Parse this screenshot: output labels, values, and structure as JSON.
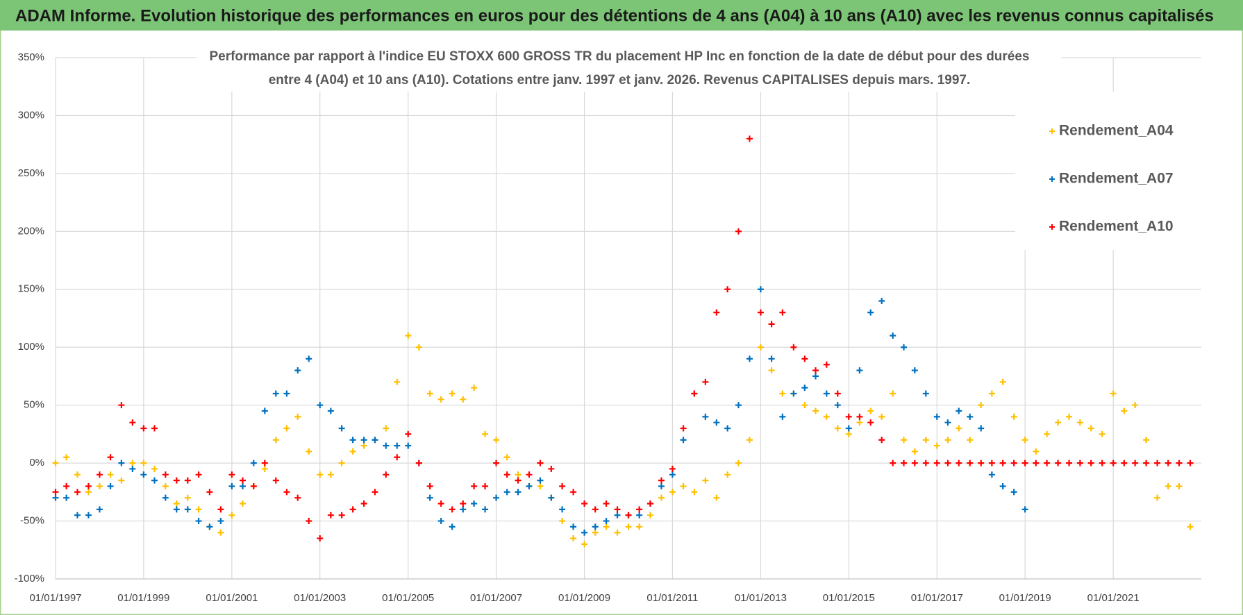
{
  "chart_data": {
    "type": "scatter",
    "title": "ADAM Informe. Evolution historique des performances en euros pour des détentions de 4 ans (A04) à 10 ans (A10) avec les revenus connus capitalisés",
    "subtitle": [
      "Performance par rapport à l'indice EU STOXX 600 GROSS TR  du placement HP Inc en fonction de la date de début pour des durées",
      "entre 4 (A04) et 10 ans (A10). Cotations entre janv. 1997 et janv. 2026. Revenus CAPITALISES depuis mars. 1997."
    ],
    "x": [
      "01/01/1997",
      "01/04/1997",
      "01/07/1997",
      "01/10/1997",
      "01/01/1998",
      "01/04/1998",
      "01/07/1998",
      "01/10/1998",
      "01/01/1999",
      "01/04/1999",
      "01/07/1999",
      "01/10/1999",
      "01/01/2000",
      "01/04/2000",
      "01/07/2000",
      "01/10/2000",
      "01/01/2001",
      "01/04/2001",
      "01/07/2001",
      "01/10/2001",
      "01/01/2002",
      "01/04/2002",
      "01/07/2002",
      "01/10/2002",
      "01/01/2003",
      "01/04/2003",
      "01/07/2003",
      "01/10/2003",
      "01/01/2004",
      "01/04/2004",
      "01/07/2004",
      "01/10/2004",
      "01/01/2005",
      "01/04/2005",
      "01/07/2005",
      "01/10/2005",
      "01/01/2006",
      "01/04/2006",
      "01/07/2006",
      "01/10/2006",
      "01/01/2007",
      "01/04/2007",
      "01/07/2007",
      "01/10/2007",
      "01/01/2008",
      "01/04/2008",
      "01/07/2008",
      "01/10/2008",
      "01/01/2009",
      "01/04/2009",
      "01/07/2009",
      "01/10/2009",
      "01/01/2010",
      "01/04/2010",
      "01/07/2010",
      "01/10/2010",
      "01/01/2011",
      "01/04/2011",
      "01/07/2011",
      "01/10/2011",
      "01/01/2012",
      "01/04/2012",
      "01/07/2012",
      "01/10/2012",
      "01/01/2013",
      "01/04/2013",
      "01/07/2013",
      "01/10/2013",
      "01/01/2014",
      "01/04/2014",
      "01/07/2014",
      "01/10/2014",
      "01/01/2015",
      "01/04/2015",
      "01/07/2015",
      "01/10/2015",
      "01/01/2016",
      "01/04/2016",
      "01/07/2016",
      "01/10/2016",
      "01/01/2017",
      "01/04/2017",
      "01/07/2017",
      "01/10/2017",
      "01/01/2018",
      "01/04/2018",
      "01/07/2018",
      "01/10/2018",
      "01/01/2019",
      "01/04/2019",
      "01/07/2019",
      "01/10/2019",
      "01/01/2020",
      "01/04/2020",
      "01/07/2020",
      "01/10/2020",
      "01/01/2021",
      "01/04/2021",
      "01/07/2021",
      "01/10/2021",
      "01/01/2022",
      "01/04/2022",
      "01/07/2022",
      "01/10/2022"
    ],
    "series": [
      {
        "name": "Rendement_A04",
        "color": "#ffc000",
        "values": [
          0,
          5,
          -10,
          -25,
          -20,
          -10,
          -15,
          0,
          0,
          -5,
          -20,
          -35,
          -30,
          -40,
          -55,
          -60,
          -45,
          -35,
          -20,
          -5,
          20,
          30,
          40,
          10,
          -10,
          -10,
          0,
          10,
          15,
          20,
          30,
          70,
          110,
          100,
          60,
          55,
          60,
          55,
          65,
          25,
          20,
          5,
          -10,
          -20,
          -20,
          -30,
          -50,
          -65,
          -70,
          -60,
          -55,
          -60,
          -55,
          -55,
          -45,
          -30,
          -25,
          -20,
          -25,
          -15,
          -30,
          -10,
          0,
          20,
          100,
          80,
          60,
          60,
          50,
          45,
          40,
          30,
          25,
          35,
          45,
          40,
          60,
          20,
          10,
          20,
          15,
          20,
          30,
          20,
          50,
          60,
          70,
          40,
          20,
          10,
          25,
          35,
          40,
          35,
          30,
          25,
          60,
          45,
          50,
          20,
          -30,
          -20,
          -20,
          -55
        ]
      },
      {
        "name": "Rendement_A07",
        "color": "#0070c0",
        "values": [
          -30,
          -30,
          -45,
          -45,
          -40,
          -20,
          0,
          -5,
          -10,
          -15,
          -30,
          -40,
          -40,
          -50,
          -55,
          -50,
          -20,
          -20,
          0,
          45,
          60,
          60,
          80,
          90,
          50,
          45,
          30,
          20,
          20,
          20,
          15,
          15,
          15,
          0,
          -30,
          -50,
          -55,
          -40,
          -35,
          -40,
          -30,
          -25,
          -25,
          -20,
          -15,
          -30,
          -40,
          -55,
          -60,
          -55,
          -50,
          -45,
          -45,
          -45,
          -35,
          -20,
          -10,
          20,
          60,
          40,
          35,
          30,
          50,
          90,
          150,
          90,
          40,
          60,
          65,
          75,
          60,
          50,
          30,
          80,
          130,
          140,
          110,
          100,
          80,
          60,
          40,
          35,
          45,
          40,
          30,
          -10,
          -20,
          -25,
          -40,
          null,
          null,
          null,
          null,
          null,
          null,
          null,
          null,
          null,
          null,
          null,
          null,
          null,
          null,
          null
        ]
      },
      {
        "name": "Rendement_A10",
        "color": "#ff0000",
        "values": [
          -25,
          -20,
          -25,
          -20,
          -10,
          5,
          50,
          35,
          30,
          30,
          -10,
          -15,
          -15,
          -10,
          -25,
          -40,
          -10,
          -15,
          -20,
          0,
          -15,
          -25,
          -30,
          -50,
          -65,
          -45,
          -45,
          -40,
          -35,
          -25,
          -10,
          5,
          25,
          0,
          -20,
          -35,
          -40,
          -35,
          -20,
          -20,
          0,
          -10,
          -15,
          -10,
          0,
          -5,
          -20,
          -25,
          -35,
          -40,
          -35,
          -40,
          -45,
          -40,
          -35,
          -15,
          -5,
          30,
          60,
          70,
          130,
          150,
          200,
          280,
          130,
          120,
          130,
          100,
          90,
          80,
          85,
          60,
          40,
          40,
          35,
          20,
          0,
          0,
          0,
          0,
          0,
          0,
          0,
          0,
          0,
          0,
          0,
          0,
          0,
          0,
          0,
          0,
          0,
          0,
          0,
          0,
          0,
          0,
          0,
          0,
          0,
          0,
          0,
          0
        ]
      }
    ],
    "xlim": [
      "01/01/1997",
      "01/01/2023"
    ],
    "xticks": [
      "01/01/1997",
      "01/01/1999",
      "01/01/2001",
      "01/01/2003",
      "01/01/2005",
      "01/01/2007",
      "01/01/2009",
      "01/01/2011",
      "01/01/2013",
      "01/01/2015",
      "01/01/2017",
      "01/01/2019",
      "01/01/2021"
    ],
    "ylim": [
      -100,
      350
    ],
    "yticks": [
      {
        "value": -100,
        "label": "-100%"
      },
      {
        "value": -50,
        "label": "-50%"
      },
      {
        "value": 0,
        "label": "0%"
      },
      {
        "value": 50,
        "label": "50%"
      },
      {
        "value": 100,
        "label": "100%"
      },
      {
        "value": 150,
        "label": "150%"
      },
      {
        "value": 200,
        "label": "200%"
      },
      {
        "value": 250,
        "label": "250%"
      },
      {
        "value": 300,
        "label": "300%"
      },
      {
        "value": 350,
        "label": "350%"
      }
    ],
    "grid": true,
    "legend": "upper right"
  }
}
